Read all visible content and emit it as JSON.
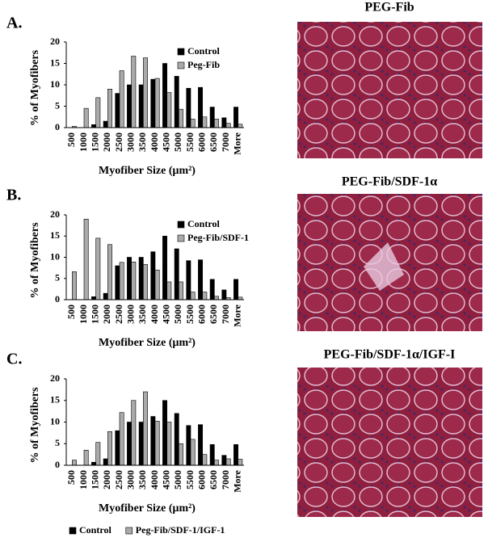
{
  "chart_data": [
    {
      "type": "bar",
      "panel": "A.",
      "image_title": "PEG-Fib",
      "xlabel": "Myofiber Size (μm²)",
      "ylabel": "% of Myofibers",
      "categories": [
        "500",
        "1000",
        "1500",
        "2000",
        "2500",
        "3000",
        "3500",
        "4000",
        "4500",
        "5000",
        "5500",
        "6000",
        "6500",
        "7000",
        "More"
      ],
      "series": [
        {
          "name": "Control",
          "color": "#000000",
          "values": [
            0,
            0,
            0.7,
            1.5,
            8,
            10,
            10,
            11.3,
            15,
            12,
            9.2,
            9.4,
            4.8,
            2.3,
            4.8
          ]
        },
        {
          "name": "Peg-Fib",
          "color": "#aaaaaa",
          "values": [
            0.3,
            4.5,
            7,
            9,
            13.3,
            16.7,
            16.3,
            11.5,
            8.2,
            4.3,
            2,
            2.5,
            2,
            1,
            0.8
          ]
        }
      ],
      "ylim": [
        0,
        20
      ],
      "yticks": [
        0,
        5,
        10,
        15,
        20
      ],
      "grid": false,
      "legend": "upper right"
    },
    {
      "type": "bar",
      "panel": "B.",
      "image_title": "PEG-Fib/SDF-1α",
      "xlabel": "Myofiber Size (μm²)",
      "ylabel": "% of Myofibers",
      "categories": [
        "500",
        "1000",
        "1500",
        "2000",
        "2500",
        "3000",
        "3500",
        "4000",
        "4500",
        "5000",
        "5500",
        "6000",
        "6500",
        "7000",
        "More"
      ],
      "series": [
        {
          "name": "Control",
          "color": "#000000",
          "values": [
            0,
            0,
            0.7,
            1.5,
            8,
            10,
            10,
            11.3,
            15,
            12,
            9.2,
            9.4,
            4.8,
            2.3,
            4.8
          ]
        },
        {
          "name": "Peg-Fib/SDF-1",
          "color": "#aaaaaa",
          "values": [
            6.6,
            19,
            14.5,
            13,
            8.8,
            8.9,
            8.3,
            7,
            4.2,
            4.2,
            1.8,
            1.8,
            0.8,
            0.5,
            0.6
          ]
        }
      ],
      "ylim": [
        0,
        20
      ],
      "yticks": [
        0,
        5,
        10,
        15,
        20
      ],
      "grid": false,
      "legend": "upper right"
    },
    {
      "type": "bar",
      "panel": "C.",
      "image_title": "PEG-Fib/SDF-1α/IGF-I",
      "xlabel": "Myofiber Size (μm²)",
      "ylabel": "% of Myofibers",
      "categories": [
        "500",
        "1000",
        "1500",
        "2000",
        "2500",
        "3000",
        "3500",
        "4000",
        "4500",
        "5000",
        "5500",
        "6000",
        "6500",
        "7000",
        "More"
      ],
      "series": [
        {
          "name": "Control",
          "color": "#000000",
          "values": [
            0,
            0,
            0.7,
            1.5,
            8,
            10,
            10,
            11.3,
            15,
            12,
            9.2,
            9.4,
            4.8,
            2.3,
            4.8
          ]
        },
        {
          "name": "Peg-Fib/SDF-1/IGF-1",
          "color": "#aaaaaa",
          "values": [
            1.2,
            3.5,
            5.3,
            7.8,
            12.2,
            15,
            17,
            10.2,
            10,
            5,
            6,
            2.5,
            1.2,
            1.5,
            1.4
          ]
        }
      ],
      "ylim": [
        0,
        20
      ],
      "yticks": [
        0,
        5,
        10,
        15,
        20
      ],
      "grid": false,
      "legend": "bottom"
    }
  ]
}
